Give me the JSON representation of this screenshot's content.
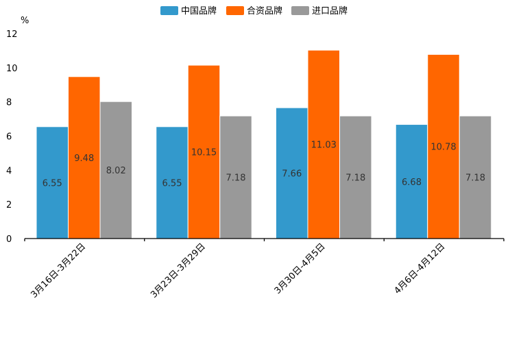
{
  "chart_data": {
    "type": "bar",
    "categories": [
      "3月16日-3月22日",
      "3月23日-3月29日",
      "3月30日-4月5日",
      "4月6日-4月12日"
    ],
    "series": [
      {
        "name": "中国品牌",
        "color": "#3399CC",
        "values": [
          6.55,
          6.55,
          7.66,
          6.68
        ]
      },
      {
        "name": "合资品牌",
        "color": "#FF6600",
        "values": [
          9.48,
          10.15,
          11.03,
          10.78
        ]
      },
      {
        "name": "进口品牌",
        "color": "#999999",
        "values": [
          8.02,
          7.18,
          7.18,
          7.18
        ]
      }
    ],
    "ylabel": "%",
    "ylim": [
      0,
      12
    ],
    "yticks": [
      0,
      2,
      4,
      6,
      8,
      10,
      12
    ],
    "legend_position": "top-center",
    "grid": false
  }
}
